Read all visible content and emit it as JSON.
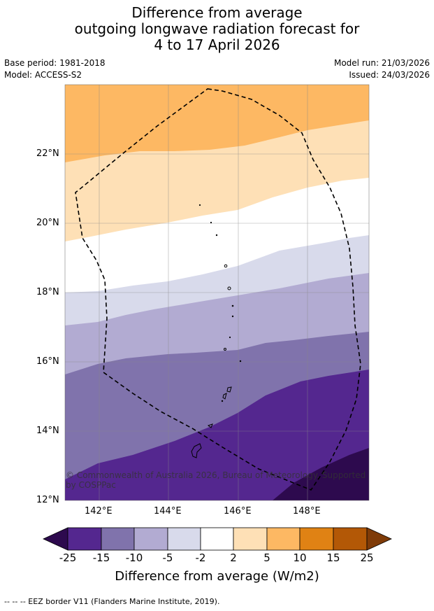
{
  "title": {
    "line1": "Difference from average",
    "line2": "outgoing longwave radiation forecast for",
    "line3": "4 to 17 April 2026"
  },
  "meta": {
    "base_period": "Base period: 1981-2018",
    "model": "Model: ACCESS-S2",
    "model_run": "Model run: 21/03/2026",
    "issued": "Issued: 24/03/2026"
  },
  "map": {
    "lat_labels": [
      "22°N",
      "20°N",
      "18°N",
      "16°N",
      "14°N",
      "12°N"
    ],
    "lon_labels": [
      "142°E",
      "144°E",
      "146°E",
      "148°E"
    ],
    "copyright": "© Commonwealth of Australia 2026, Bureau of Meteorology. Supported by COSPPac",
    "colors": {
      "c_m25": "#2d0a4e",
      "c_m15": "#54278f",
      "c_m10": "#8073ac",
      "c_m5": "#b2abd2",
      "c_m2": "#d8daeb",
      "c_0": "#ffffff",
      "c_2": "#fee0b6",
      "c_5": "#fdb863",
      "c_10": "#e08214",
      "c_15": "#b35806",
      "c_25": "#7f3b08"
    }
  },
  "colorbar": {
    "ticks": [
      "-25",
      "-15",
      "-10",
      "-5",
      "-2",
      "2",
      "5",
      "10",
      "15",
      "25"
    ],
    "label": "Difference from average (W/m2)"
  },
  "footer": "--  --  -- EEZ border V11 (Flanders Marine Institute, 2019)."
}
